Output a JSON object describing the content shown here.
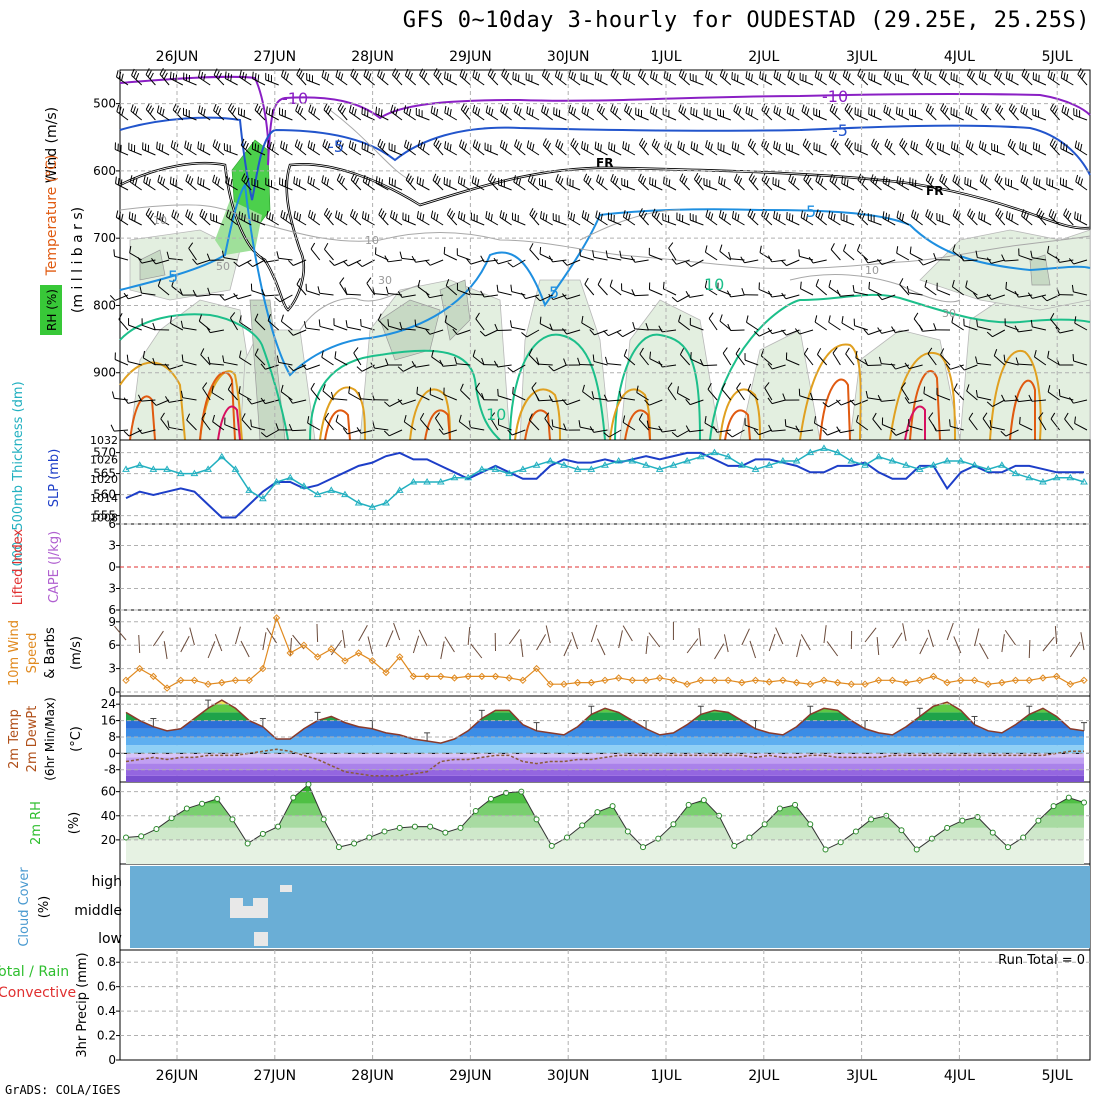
{
  "title": "GFS 0~10day 3-hourly for OUDESTAD (29.25E, 25.25S)",
  "credit": "GrADS: COLA/IGES",
  "date_labels": [
    "26JUN",
    "27JUN",
    "28JUN",
    "29JUN",
    "30JUN",
    "1JUL",
    "2JUL",
    "3JUL",
    "4JUL",
    "5JUL"
  ],
  "axis_labels": {
    "upper_wind": "Wind (m/s)",
    "upper_temp": "Temperature (°C)",
    "upper_rh": "RH (%)",
    "upper_pressure": "(m i l l i b a r s)",
    "thickness": "1000~500mb Thickness (dm)",
    "slp": "SLP (mb)",
    "lifted": "Lifted Index",
    "cape": "CAPE (J/kg)",
    "wind10_a": "10m Wind",
    "wind10_b": "Speed",
    "wind10_c": "& Barbs",
    "wind10_unit": "(m/s)",
    "temp_a": "2m Temp",
    "temp_b": "2m DewPt",
    "temp_c": "(6hr Min/Max)",
    "temp_unit": "(°C)",
    "rh2m": "2m RH",
    "rh2m_unit": "(%)",
    "cloud": "Cloud Cover",
    "cloud_unit": "(%)",
    "precip_a": "Total / Rain",
    "precip_b": "Convective",
    "precip_c": "3hr Precip (mm)",
    "run_total": "Run Total = 0"
  },
  "contour_labels": {
    "minus10a": "-10",
    "minus10b": "-10",
    "minus5a": "-5",
    "minus5b": "-5",
    "fr1": "FR",
    "fr2": "FR",
    "plus5a": "5",
    "plus5b": "5",
    "plus5c": "5",
    "plus10a": "10",
    "plus10b": "10",
    "rh10a": "10",
    "rh10b": "10",
    "rh10c": "10",
    "rh30a": "30",
    "rh30b": "30",
    "rh50": "50"
  },
  "cloud_levels": [
    "high",
    "middle",
    "low"
  ],
  "colors": {
    "minus10": "#8a1fc4",
    "minus5": "#2255cc",
    "freezing": "#000000",
    "plus5": "#1e8fe0",
    "plus10": "#1cbf8a",
    "plus15": "#e0a020",
    "plus20": "#e05a10",
    "plus25": "#d81060",
    "slp": "#1d3ec8",
    "thickness": "#22b0c0",
    "wind10": "#e08a20",
    "rh_green": "#2fbf2f",
    "cloud_bg": "#6aaed6",
    "lifted": "#e03030"
  },
  "chart_data": [
    {
      "type": "line",
      "panel": "upper-air temperature/wind/RH",
      "ylabel": "(m i l l i b a r s)",
      "ylim": [
        1000,
        450
      ],
      "y_ticks": [
        500,
        600,
        700,
        800,
        900
      ],
      "contour_levels": [
        "-10",
        "-5",
        "FR",
        "5",
        "10"
      ]
    },
    {
      "type": "line",
      "panel": "thickness and SLP",
      "ylabel": "1000~500mb Thickness (dm)",
      "ylabel2": "SLP (mb)",
      "y_ticks": [
        555,
        560,
        565,
        570
      ],
      "y2_ticks": [
        1008,
        1014,
        1020,
        1026,
        1032
      ],
      "ylim": [
        553,
        573
      ],
      "y2lim": [
        1006,
        1032
      ],
      "series": [
        {
          "name": "1000~500mb Thickness (dm)",
          "axis": "y",
          "values": [
            566,
            567,
            566,
            566,
            565,
            565,
            566,
            569,
            566,
            561,
            559,
            563,
            564,
            562,
            560,
            561,
            560,
            558,
            557,
            558,
            561,
            563,
            563,
            563,
            564,
            564,
            566,
            566,
            565,
            566,
            567,
            568,
            567,
            566,
            566,
            567,
            568,
            568,
            567,
            566,
            567,
            568,
            569,
            570,
            569,
            567,
            566,
            567,
            568,
            568,
            570,
            571,
            570,
            568,
            567,
            569,
            568,
            567,
            566,
            567,
            568,
            568,
            567,
            566,
            567,
            565,
            564,
            563,
            564,
            564,
            563
          ]
        },
        {
          "name": "SLP (mb)",
          "axis": "y2",
          "values": [
            1014,
            1016,
            1015,
            1016,
            1017,
            1016,
            1012,
            1008,
            1008,
            1012,
            1016,
            1019,
            1019,
            1017,
            1018,
            1020,
            1022,
            1024,
            1025,
            1027,
            1028,
            1026,
            1026,
            1024,
            1022,
            1020,
            1022,
            1024,
            1022,
            1020,
            1020,
            1024,
            1026,
            1025,
            1025,
            1026,
            1025,
            1026,
            1027,
            1026,
            1027,
            1028,
            1028,
            1026,
            1024,
            1024,
            1026,
            1026,
            1025,
            1024,
            1022,
            1022,
            1024,
            1024,
            1025,
            1022,
            1020,
            1020,
            1024,
            1024,
            1017,
            1022,
            1024,
            1022,
            1022,
            1024,
            1024,
            1023,
            1022,
            1022,
            1022
          ]
        }
      ]
    },
    {
      "type": "line",
      "panel": "lifted index / CAPE",
      "ylabel": "Lifted Index",
      "ylabel2": "CAPE (J/kg)",
      "y_ticks": [
        -6,
        -3,
        0,
        3,
        6
      ],
      "ylim": [
        6,
        -6
      ],
      "series": [
        {
          "name": "Lifted Index",
          "values": []
        }
      ]
    },
    {
      "type": "line",
      "panel": "10m wind",
      "ylabel": "10m Wind Speed & Barbs (m/s)",
      "y_ticks": [
        0,
        3,
        6,
        9
      ],
      "ylim": [
        0,
        10
      ],
      "series": [
        {
          "name": "10m Wind Speed",
          "values": [
            1.5,
            3,
            2,
            0.5,
            1.5,
            1.5,
            1,
            1.2,
            1.5,
            1.5,
            3,
            9.5,
            5,
            6,
            4.5,
            5.5,
            4,
            5,
            4,
            2.5,
            4.5,
            2,
            2,
            2,
            1.8,
            2,
            2,
            2,
            1.8,
            1.5,
            3,
            1,
            1,
            1.2,
            1.2,
            1.5,
            1.8,
            1.5,
            1.5,
            1.8,
            1.5,
            1,
            1.5,
            1.5,
            1.5,
            1.2,
            1.5,
            1.3,
            1.5,
            1.2,
            1,
            1.5,
            1.2,
            1,
            1,
            1.5,
            1.5,
            1.2,
            1.5,
            2,
            1.2,
            1.5,
            1.5,
            1,
            1.2,
            1.5,
            1.5,
            1.8,
            2,
            1,
            1.5
          ]
        }
      ]
    },
    {
      "type": "area",
      "panel": "2m temperature and dewpoint",
      "ylabel": "2m Temp 2m DewPt (6hr Min/Max) (°C)",
      "y_ticks": [
        -8,
        0,
        8,
        16,
        24
      ],
      "ylim": [
        -14,
        28
      ],
      "series": [
        {
          "name": "2m Temp",
          "values": [
            20,
            16,
            13,
            11,
            12,
            17,
            22,
            26,
            22,
            16,
            13,
            7,
            7,
            12,
            16,
            18,
            15,
            13,
            12,
            10,
            9,
            7,
            6,
            5,
            7,
            11,
            17,
            21,
            21,
            14,
            11,
            10,
            9,
            13,
            19,
            22,
            20,
            16,
            12,
            9,
            10,
            14,
            19,
            21,
            20,
            16,
            12,
            10,
            9,
            13,
            19,
            22,
            21,
            16,
            12,
            10,
            9,
            13,
            18,
            23,
            25,
            21,
            14,
            11,
            10,
            14,
            19,
            22,
            18,
            12,
            11
          ]
        },
        {
          "name": "2m DewPt",
          "values": [
            -4,
            -3,
            -2,
            -3,
            -2,
            -2,
            -1,
            -1,
            -1,
            0,
            1,
            2,
            1,
            -1,
            -3,
            -6,
            -9,
            -10,
            -11,
            -11,
            -11,
            -10,
            -9,
            -4,
            -3,
            -3,
            -2,
            -1,
            -1,
            -4,
            -5,
            -4,
            -4,
            -3,
            -3,
            -2,
            -1,
            -1,
            -1,
            -1,
            -1,
            -1,
            -1,
            -1,
            -1,
            -1,
            -2,
            -1,
            -2,
            -2,
            -1,
            -1,
            -2,
            -2,
            -2,
            -2,
            -1,
            -1,
            -1,
            -1,
            -1,
            -1,
            -1,
            -1,
            -1,
            -1,
            -1,
            -1,
            0,
            1,
            1
          ]
        }
      ]
    },
    {
      "type": "area",
      "panel": "2m relative humidity",
      "ylabel": "2m RH (%)",
      "y_ticks": [
        20,
        40,
        60
      ],
      "ylim": [
        0,
        68
      ],
      "series": [
        {
          "name": "2m RH",
          "values": [
            22,
            23,
            29,
            38,
            46,
            50,
            54,
            37,
            17,
            25,
            31,
            55,
            66,
            37,
            14,
            17,
            22,
            27,
            30,
            31,
            31,
            26,
            30,
            44,
            54,
            59,
            60,
            37,
            15,
            22,
            32,
            43,
            48,
            27,
            14,
            21,
            33,
            49,
            53,
            40,
            15,
            22,
            33,
            46,
            49,
            33,
            12,
            18,
            27,
            37,
            40,
            28,
            12,
            21,
            30,
            36,
            39,
            26,
            14,
            22,
            36,
            48,
            55,
            51
          ]
        }
      ]
    },
    {
      "type": "heatmap",
      "panel": "cloud cover",
      "ylabel": "Cloud Cover (%)",
      "y_categories": [
        "high",
        "middle",
        "low"
      ],
      "values": [
        {
          "date": "26JUN-27JUN",
          "level": "middle",
          "pct": 100
        },
        {
          "date": "27JUN",
          "level": "high",
          "pct": 100
        },
        {
          "date": "27JUN",
          "level": "low",
          "pct": 100
        }
      ]
    },
    {
      "type": "bar",
      "panel": "3hr precipitation",
      "ylabel": "3hr Precip (mm)",
      "y_ticks": [
        0,
        0.2,
        0.4,
        0.6,
        0.8
      ],
      "ylim": [
        0,
        0.9
      ],
      "series": [
        {
          "name": "Total / Rain",
          "values": []
        },
        {
          "name": "Convective",
          "values": []
        }
      ]
    }
  ]
}
